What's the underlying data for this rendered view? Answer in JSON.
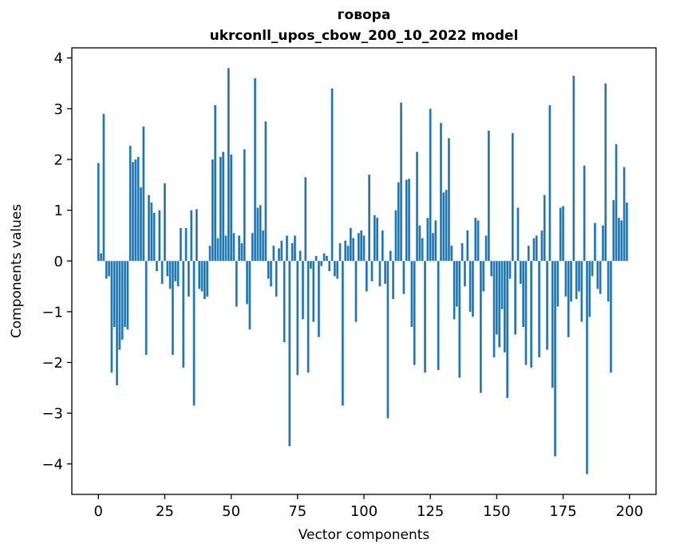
{
  "figure": {
    "title_line1": "говора",
    "title_line2": "ukrconll_upos_cbow_200_10_2022 model",
    "xlabel": "Vector components",
    "ylabel": "Components values"
  },
  "chart_data": {
    "type": "bar",
    "title": "говора",
    "subtitle": "ukrconll_upos_cbow_200_10_2022 model",
    "xlabel": "Vector components",
    "ylabel": "Components values",
    "bar_color": "#1f77b4",
    "frame_color": "#000000",
    "x_ticks": [
      0,
      25,
      50,
      75,
      100,
      125,
      150,
      175,
      200
    ],
    "y_ticks": [
      -4,
      -3,
      -2,
      -1,
      0,
      1,
      2,
      3,
      4
    ],
    "xlim": [
      -10,
      210
    ],
    "ylim": [
      -4.6,
      4.2
    ],
    "grid": false,
    "legend": "none",
    "n_components": 200,
    "values": [
      1.93,
      0.15,
      2.9,
      -0.35,
      -0.3,
      -2.2,
      -1.3,
      -2.45,
      -1.75,
      -1.55,
      -1.3,
      -1.35,
      2.27,
      1.95,
      2.0,
      2.05,
      1.45,
      2.65,
      -1.85,
      1.3,
      1.15,
      0.95,
      -0.2,
      1.0,
      -0.45,
      1.53,
      -0.3,
      -0.55,
      -1.85,
      -0.4,
      -0.5,
      0.65,
      -2.1,
      0.65,
      -0.7,
      1.0,
      -2.85,
      1.02,
      -0.55,
      -0.6,
      -0.75,
      -0.7,
      0.3,
      2.0,
      3.07,
      0.45,
      2.05,
      2.15,
      0.5,
      3.8,
      2.1,
      0.55,
      -0.9,
      0.5,
      0.35,
      2.2,
      -0.85,
      -1.35,
      0.55,
      3.6,
      1.05,
      1.1,
      0.6,
      2.75,
      -0.35,
      -0.5,
      0.3,
      -0.7,
      0.25,
      0.4,
      -1.6,
      0.5,
      -3.65,
      0.35,
      0.5,
      -2.25,
      0.2,
      -1.15,
      1.65,
      -2.2,
      -0.15,
      -1.2,
      0.1,
      -1.5,
      -0.1,
      0.15,
      0.1,
      -0.2,
      3.4,
      -0.3,
      -0.35,
      0.35,
      -2.85,
      0.4,
      0.3,
      0.65,
      0.45,
      -1.2,
      0.55,
      0.6,
      0.5,
      -0.6,
      1.7,
      -0.4,
      0.9,
      0.85,
      -0.5,
      0.6,
      -0.45,
      -3.1,
      0.2,
      -0.75,
      1.0,
      1.55,
      3.12,
      -0.65,
      1.6,
      1.62,
      -1.3,
      -2.05,
      2.15,
      0.7,
      0.45,
      -2.2,
      0.85,
      3.0,
      0.55,
      0.8,
      -2.15,
      2.72,
      1.35,
      1.4,
      2.42,
      0.3,
      -1.15,
      -0.9,
      -2.3,
      0.35,
      -0.5,
      0.6,
      -1.0,
      -1.1,
      0.85,
      0.8,
      -2.6,
      -0.6,
      0.5,
      2.57,
      -0.3,
      -1.9,
      -1.45,
      -1.7,
      -0.95,
      -1.8,
      -2.7,
      -0.35,
      2.52,
      -1.45,
      1.05,
      -0.45,
      -1.3,
      -2.05,
      0.3,
      -2.1,
      0.45,
      0.5,
      -1.9,
      0.6,
      1.3,
      -1.75,
      3.07,
      -2.5,
      -3.85,
      -0.9,
      1.05,
      1.08,
      -0.7,
      -1.5,
      -0.8,
      3.65,
      -0.75,
      -0.6,
      -1.2,
      1.88,
      -4.2,
      -1.1,
      -0.3,
      0.75,
      -0.55,
      -0.65,
      0.7,
      3.5,
      -0.8,
      -2.2,
      1.2,
      2.3,
      0.85,
      0.8,
      1.85,
      1.15
    ]
  }
}
